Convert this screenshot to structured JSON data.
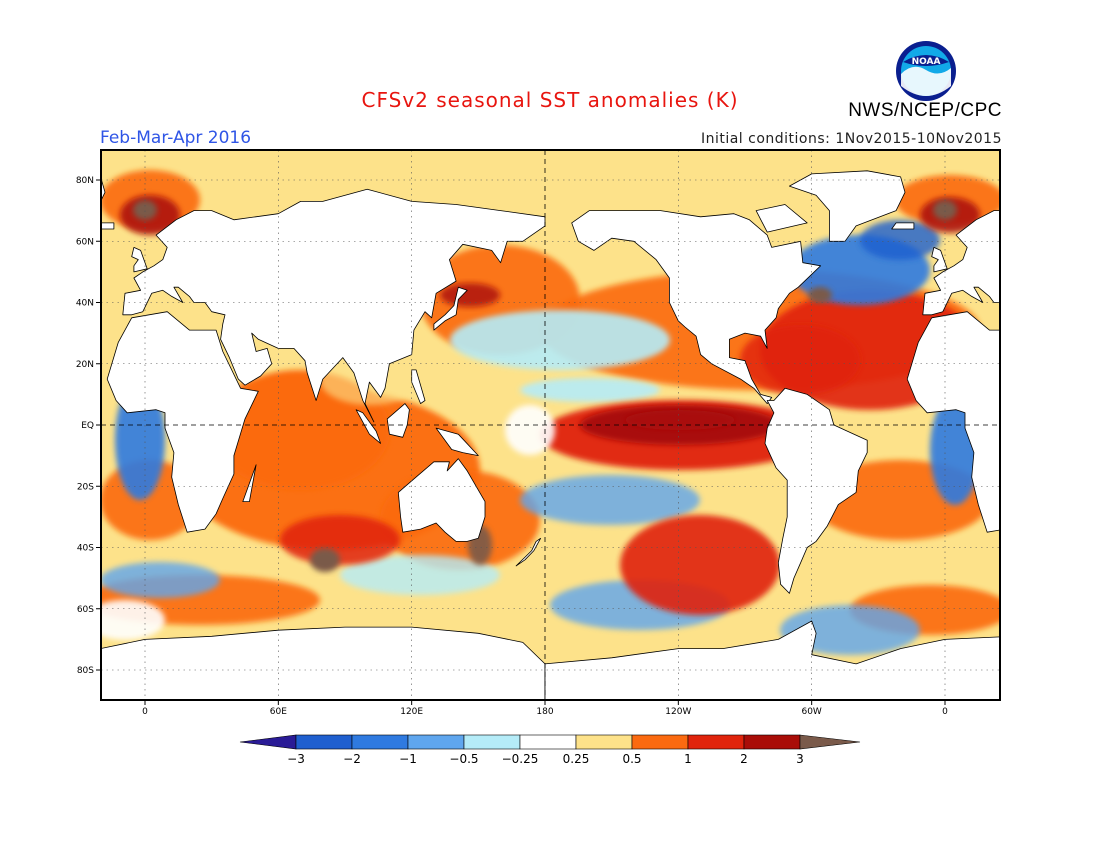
{
  "title": "CFSv2 seasonal SST anomalies (K)",
  "agency": "NWS/NCEP/CPC",
  "period": "Feb-Mar-Apr 2016",
  "initial_conditions": "Initial conditions: 1Nov2015-10Nov2015",
  "logo_text": "NOAA",
  "lat_ticks": [
    "80N",
    "60N",
    "40N",
    "20N",
    "EQ",
    "20S",
    "40S",
    "60S",
    "80S"
  ],
  "lon_ticks": [
    "0",
    "60E",
    "120E",
    "180",
    "120W",
    "60W",
    "0"
  ],
  "colorbar": {
    "labels": [
      "-3",
      "-2",
      "-1",
      "-0.5",
      "-0.25",
      "0.25",
      "0.5",
      "1",
      "2",
      "3"
    ],
    "colors": [
      "#2a1b96",
      "#1f5fcf",
      "#2f7ae0",
      "#5fa6ee",
      "#b5ecf8",
      "#ffffff",
      "#fde28a",
      "#fb6a10",
      "#e0240c",
      "#a90d08",
      "#7a5a4a"
    ]
  },
  "colors": {
    "land": "#ffffff",
    "ocean_base": "#ffffff",
    "title": "#e8150f",
    "period": "#2f55e6"
  },
  "chart_data": {
    "type": "heatmap",
    "title": "CFSv2 seasonal SST anomalies (K)",
    "units": "K",
    "lat_range": [
      "90S",
      "90N"
    ],
    "lon_range": [
      "20W",
      "20E (wrapped)"
    ],
    "grid": "dotted at 20-degree latitude and 60-degree longitude intervals",
    "anomaly_features": [
      {
        "region": "Central/Eastern Equatorial Pacific",
        "level": "3"
      },
      {
        "region": "East Pacific along Americas coast",
        "level": "2"
      },
      {
        "region": "North Atlantic subtropics",
        "level": "2"
      },
      {
        "region": "Indian Ocean",
        "level": "1"
      },
      {
        "region": "South Pacific 30S-55S around 120W-150W",
        "level": "2"
      },
      {
        "region": "North Pacific central",
        "level": "-1"
      },
      {
        "region": "Subpolar North Atlantic",
        "level": "-1"
      },
      {
        "region": "Southern Ocean near 60S",
        "level": "-0.5"
      },
      {
        "region": "Benguela coast off SW Africa",
        "level": "-2"
      }
    ]
  }
}
